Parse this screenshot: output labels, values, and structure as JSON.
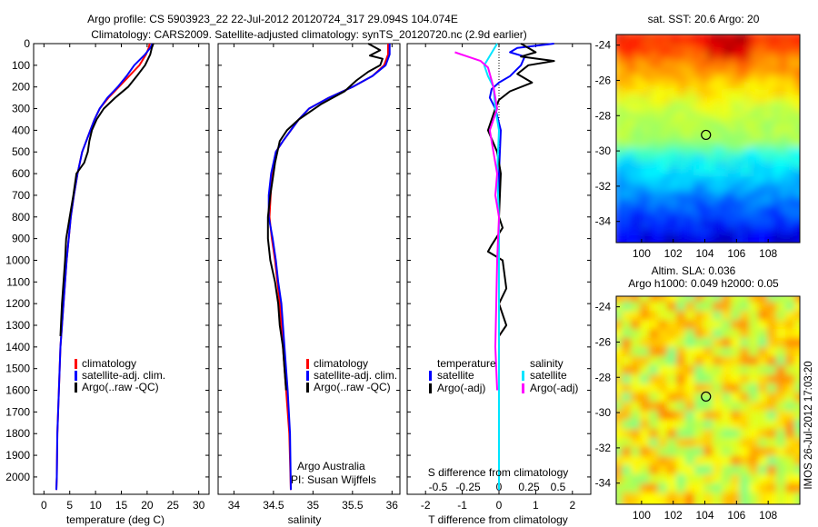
{
  "header": {
    "line1": "Argo profile: CS 5903923_22 22-Jul-2012 20120724_317 29.094S 104.074E",
    "line2": "Climatology: CARS2009. Satellite-adjusted climatology: synTS_20120720.nc (2.9d earlier)"
  },
  "chart_data": [
    {
      "type": "line",
      "name": "temperature",
      "xlabel": "temperature (deg C)",
      "xlim": [
        -2,
        32
      ],
      "ylim": [
        0,
        2080
      ],
      "y_reversed": true,
      "xticks": [
        0,
        5,
        10,
        15,
        20,
        25,
        30
      ],
      "yticks": [
        0,
        100,
        200,
        300,
        400,
        500,
        600,
        700,
        800,
        900,
        1000,
        1100,
        1200,
        1300,
        1400,
        1500,
        1600,
        1700,
        1800,
        1900,
        2000
      ],
      "legend": [
        "climatology",
        "satellite-adj. clim.",
        "Argo(..raw -QC)"
      ],
      "legend_placement": "lower-right",
      "series": [
        {
          "name": "climatology",
          "color": "#ff0000",
          "x": [
            20.5,
            20.3,
            19.8,
            18.5,
            16.5,
            14.5,
            12.5,
            10.8,
            9.8,
            9,
            8.2,
            7.4,
            6.5,
            5.8,
            5.2,
            4.8,
            4.4,
            4.1,
            3.8,
            3.5,
            3.2,
            2.9,
            2.6,
            2.5,
            2.4
          ],
          "y": [
            0,
            20,
            50,
            100,
            150,
            200,
            250,
            300,
            350,
            400,
            450,
            500,
            600,
            700,
            800,
            900,
            1000,
            1100,
            1200,
            1300,
            1400,
            1600,
            1800,
            2000,
            2060
          ]
        },
        {
          "name": "satellite-adj. clim.",
          "color": "#0000ff",
          "x": [
            21,
            20.6,
            19.6,
            17.5,
            16,
            14.3,
            12.3,
            10.8,
            9.8,
            9,
            8.2,
            7.4,
            6.5,
            5.8,
            5.2,
            4.8,
            4.4,
            4.1,
            3.8,
            3.5,
            3.2,
            2.9,
            2.6,
            2.5,
            2.4
          ],
          "y": [
            0,
            20,
            50,
            100,
            150,
            200,
            250,
            300,
            350,
            400,
            450,
            500,
            600,
            700,
            800,
            900,
            1000,
            1100,
            1200,
            1300,
            1400,
            1600,
            1800,
            2000,
            2060
          ]
        },
        {
          "name": "Argo(..raw -QC)",
          "color": "#000000",
          "x": [
            21.2,
            20.9,
            20.6,
            19.6,
            18,
            16.3,
            13.8,
            11.6,
            10.2,
            9.3,
            8.8,
            8.5,
            7.8,
            6.3,
            5.7,
            5,
            4.3,
            4.1,
            3.8,
            3.5,
            3.2
          ],
          "y": [
            0,
            20,
            50,
            100,
            150,
            200,
            250,
            300,
            350,
            400,
            450,
            500,
            550,
            600,
            700,
            800,
            900,
            1000,
            1100,
            1200,
            1350
          ]
        }
      ]
    },
    {
      "type": "line",
      "name": "salinity",
      "xlabel": "salinity",
      "xlim": [
        33.8,
        36.1
      ],
      "ylim": [
        0,
        2080
      ],
      "y_reversed": true,
      "xticks": [
        34,
        34.5,
        35,
        35.5,
        36
      ],
      "xtick_labels": [
        "34",
        "34.5",
        "35",
        "35.5",
        "36"
      ],
      "legend": [
        "climatology",
        "satellite-adj. clim.",
        "Argo(..raw -QC)"
      ],
      "legend_placement": "lower-right",
      "annotation": [
        "Argo Australia",
        "PI: Susan Wijffels"
      ],
      "series": [
        {
          "name": "climatology",
          "color": "#ff0000",
          "x": [
            35.95,
            35.95,
            35.9,
            35.75,
            35.5,
            35.2,
            34.95,
            34.82,
            34.72,
            34.62,
            34.53,
            34.48,
            34.45,
            34.48,
            34.52,
            34.55,
            34.58,
            34.62,
            34.66,
            34.7,
            34.72
          ],
          "y": [
            0,
            50,
            100,
            150,
            200,
            250,
            300,
            350,
            400,
            450,
            500,
            600,
            800,
            900,
            1000,
            1100,
            1200,
            1400,
            1600,
            1800,
            2060
          ]
        },
        {
          "name": "satellite-adj. clim.",
          "color": "#0000ff",
          "x": [
            35.97,
            35.97,
            35.92,
            35.75,
            35.5,
            35.2,
            34.95,
            34.82,
            34.72,
            34.62,
            34.53,
            34.47,
            34.44,
            34.44,
            34.49,
            34.53,
            34.56,
            34.6,
            34.64,
            34.68,
            34.71,
            34.72
          ],
          "y": [
            0,
            50,
            100,
            150,
            200,
            250,
            300,
            350,
            400,
            450,
            500,
            600,
            700,
            800,
            900,
            1000,
            1100,
            1200,
            1400,
            1600,
            1800,
            2060
          ]
        },
        {
          "name": "Argo(..raw -QC)",
          "color": "#000000",
          "x": [
            35.7,
            35.85,
            35.72,
            35.88,
            35.85,
            35.7,
            35.55,
            35.4,
            35.1,
            34.82,
            34.67,
            34.58,
            34.55,
            34.52,
            34.5,
            34.46,
            34.43,
            34.43,
            34.46,
            34.52,
            34.56,
            34.58,
            34.62,
            34.64,
            34.66
          ],
          "y": [
            0,
            30,
            55,
            70,
            100,
            130,
            170,
            220,
            280,
            350,
            400,
            450,
            500,
            550,
            600,
            700,
            800,
            900,
            1000,
            1100,
            1200,
            1300,
            1400,
            1500,
            1600
          ]
        }
      ]
    },
    {
      "type": "line",
      "name": "differences",
      "xlabel": "T difference from climatology",
      "top_axis_label": "S difference from climatology",
      "xlim": [
        -2.5,
        2.5
      ],
      "ylim": [
        0,
        2080
      ],
      "y_reversed": true,
      "xticks": [
        -2,
        -1,
        0,
        1,
        2
      ],
      "top_ticks": [
        "-0.5",
        "-0.25",
        "0",
        "0.25",
        "0.5"
      ],
      "legend_groups": [
        {
          "title": "temperature",
          "items": [
            "satellite",
            "Argo(-adj)"
          ]
        },
        {
          "title": "salinity",
          "items": [
            "satellite",
            "Argo(-adj)"
          ]
        }
      ],
      "legend_placement": "lower-center",
      "series": [
        {
          "name": "T satellite",
          "color": "#0000ff",
          "x": [
            1.5,
            0.5,
            0.3,
            0.7,
            0.6,
            0.3,
            0.0,
            -0.2,
            -0.25,
            -0.1,
            0.05,
            0.0,
            0.0,
            0.0,
            0.0,
            0.0,
            0.0,
            0.0
          ],
          "y": [
            0,
            20,
            40,
            60,
            100,
            150,
            180,
            210,
            250,
            300,
            400,
            600,
            800,
            1000,
            1200,
            1500,
            1800,
            2060
          ]
        },
        {
          "name": "T Argo(-adj)",
          "color": "#000000",
          "x": [
            0.6,
            1.0,
            0.6,
            1.5,
            0.8,
            0.5,
            0.9,
            0.3,
            0.0,
            -0.1,
            -0.3,
            -0.05,
            0.05,
            0.0,
            0.1,
            -0.2,
            -0.3,
            0.1,
            0.2,
            0.0,
            0.2,
            0.0
          ],
          "y": [
            0,
            40,
            60,
            80,
            100,
            140,
            180,
            220,
            260,
            300,
            400,
            500,
            600,
            800,
            850,
            930,
            960,
            1000,
            1130,
            1200,
            1300,
            1350
          ]
        },
        {
          "name": "S satellite",
          "color": "#00e5ff",
          "x": [
            -0.05,
            -0.4,
            -0.3,
            -0.15,
            -0.1,
            0.0,
            -0.05,
            0.0,
            0.0,
            0.0,
            0.0
          ],
          "y": [
            0,
            100,
            150,
            200,
            300,
            400,
            600,
            800,
            1200,
            1600,
            2060
          ]
        },
        {
          "name": "S Argo(-adj)",
          "color": "#ff00ff",
          "x": [
            -1.2,
            -0.5,
            -0.3,
            -0.15,
            -0.05,
            -0.25,
            -0.15,
            -0.05,
            -0.1,
            0.0,
            -0.05,
            -0.1,
            -0.05
          ],
          "y": [
            40,
            80,
            110,
            200,
            300,
            400,
            500,
            600,
            700,
            800,
            1000,
            1400,
            1600
          ]
        }
      ]
    },
    {
      "type": "heatmap",
      "name": "sst-map",
      "title": "sat. SST: 20.6  Argo: 20",
      "xlim": [
        98.4,
        110
      ],
      "ylim": [
        -35.2,
        -23.4
      ],
      "xticks": [
        100,
        102,
        104,
        106,
        108
      ],
      "yticks": [
        -24,
        -26,
        -28,
        -30,
        -32,
        -34
      ],
      "marker": {
        "lon": 104.07,
        "lat": -29.09
      }
    },
    {
      "type": "heatmap",
      "name": "sla-map",
      "title_line1": "Altim. SLA: 0.036",
      "title_line2": "Argo h1000: 0.049 h2000: 0.05",
      "xlim": [
        98.4,
        110
      ],
      "ylim": [
        -35.2,
        -23.4
      ],
      "xticks": [
        100,
        102,
        104,
        106,
        108
      ],
      "yticks": [
        -24,
        -26,
        -28,
        -30,
        -32,
        -34
      ],
      "marker": {
        "lon": 104.07,
        "lat": -29.09
      }
    }
  ],
  "footer": {
    "side_text": "IMOS 26-Jul-2012 17:03:20"
  }
}
